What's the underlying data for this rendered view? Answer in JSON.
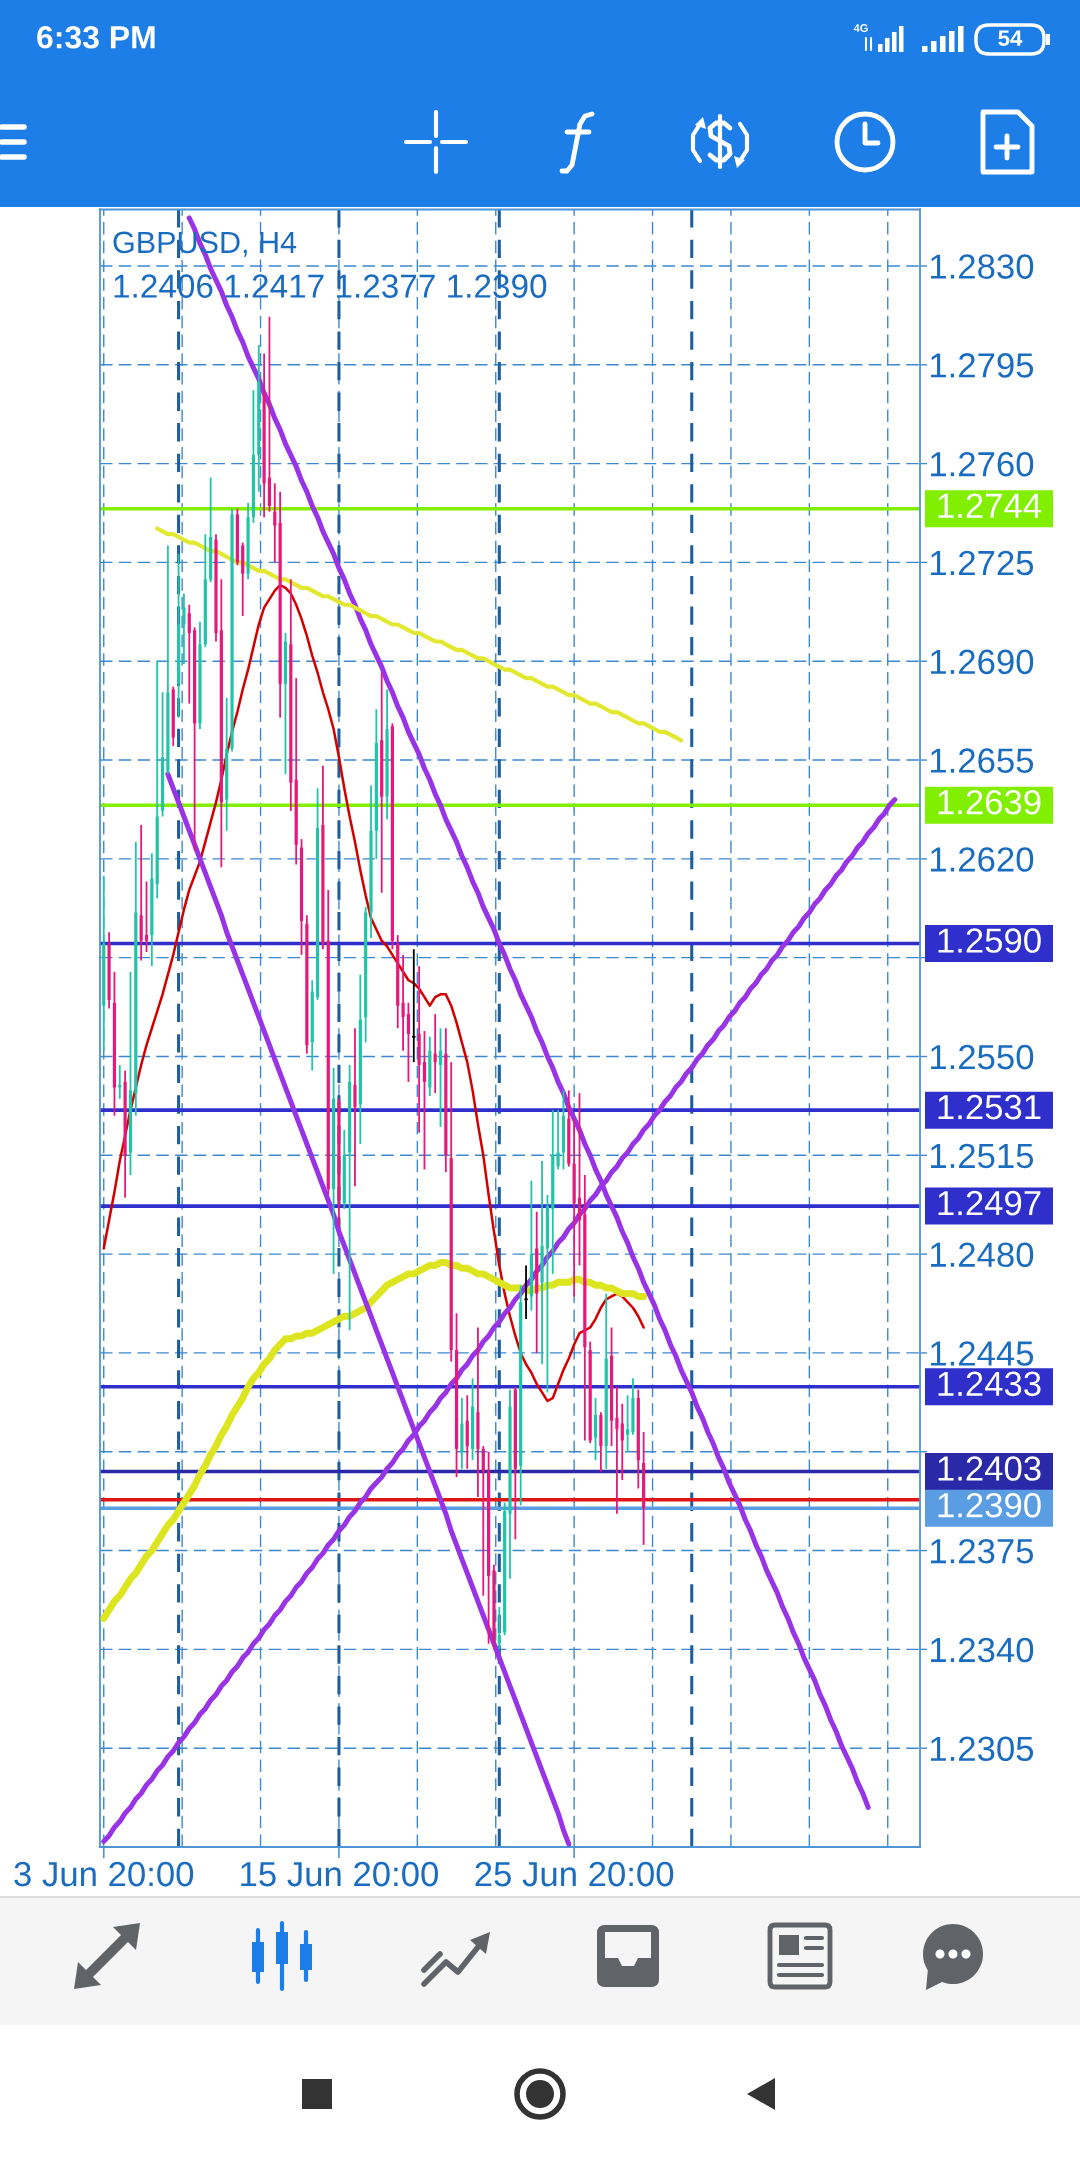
{
  "chart_data": {
    "type": "candlestick",
    "title": "GBPUSD, H4",
    "subtitle": "1.2406 1.2417 1.2377 1.2390",
    "annotations": [
      "6:33 PM",
      "4G",
      "54"
    ],
    "categories": [
      "3 Jun 20:00",
      null,
      null,
      null,
      null,
      null,
      null,
      null,
      null,
      null,
      null,
      null,
      null,
      null,
      null,
      null,
      null,
      null,
      null,
      null,
      null,
      null,
      null,
      null,
      null,
      null,
      null,
      null,
      null,
      null,
      null,
      null,
      null,
      null,
      null,
      null,
      null,
      null,
      null,
      null,
      null,
      null,
      null,
      null,
      "15 Jun 20:00",
      null,
      null,
      null,
      null,
      null,
      null,
      null,
      null,
      null,
      null,
      null,
      null,
      null,
      null,
      null,
      null,
      null,
      null,
      null,
      null,
      null,
      null,
      null,
      null,
      null,
      null,
      null,
      null,
      null,
      null,
      null,
      null,
      null,
      null,
      null,
      null,
      null,
      null,
      null,
      null,
      null,
      null,
      null,
      "25 Jun 20:00",
      null,
      null,
      null,
      null,
      null,
      null,
      null,
      null,
      null,
      null,
      null,
      null,
      null,
      null,
      null,
      null,
      null,
      null,
      null,
      null,
      null,
      null,
      null,
      null,
      null,
      null,
      null,
      null,
      null,
      null,
      null,
      null,
      null,
      null,
      null,
      null,
      null,
      null,
      null,
      null,
      null,
      null,
      null,
      null,
      null,
      null,
      null,
      null,
      null,
      null,
      null,
      null,
      null,
      null,
      null,
      null,
      null,
      null,
      null,
      null,
      null,
      null,
      null,
      null
    ],
    "series": [
      {
        "ohlc": [
          [
            1.2568,
            1.2614,
            1.2552,
            1.259
          ],
          [
            1.259,
            1.2594,
            1.2567,
            1.257
          ],
          [
            1.2569,
            1.258,
            1.2529,
            1.2539
          ],
          [
            1.2539,
            1.2547,
            1.2535,
            1.254
          ],
          [
            1.2541,
            1.2545,
            1.25,
            1.2515
          ],
          [
            1.2516,
            1.258,
            1.2508,
            1.2538
          ],
          [
            1.2537,
            1.2626,
            1.2529,
            1.2601
          ],
          [
            1.26,
            1.2632,
            1.2584,
            1.2591
          ],
          [
            1.2593,
            1.2612,
            1.2587,
            1.2591
          ],
          [
            1.2593,
            1.2622,
            1.2582,
            1.2613
          ],
          [
            1.2611,
            1.269,
            1.2606,
            1.2635
          ],
          [
            1.2637,
            1.2679,
            1.2635,
            1.2656
          ],
          [
            1.2651,
            1.2731,
            1.265,
            1.2679
          ],
          [
            1.268,
            1.2681,
            1.266,
            1.2663
          ],
          [
            1.2682,
            1.2728,
            1.267,
            1.2703
          ],
          [
            1.2703,
            1.2714,
            1.2689,
            1.2709
          ],
          [
            1.2707,
            1.271,
            1.2675,
            1.27
          ],
          [
            1.2701,
            1.2702,
            1.2623,
            1.2668
          ],
          [
            1.2668,
            1.2704,
            1.2666,
            1.2696
          ],
          [
            1.2696,
            1.2735,
            1.2695,
            1.2719
          ],
          [
            1.2719,
            1.2755,
            1.2718,
            1.2734
          ],
          [
            1.2733,
            1.2735,
            1.2697,
            1.27
          ],
          [
            1.2701,
            1.2719,
            1.2617,
            1.264
          ],
          [
            1.2641,
            1.2677,
            1.263,
            1.2659
          ],
          [
            1.2659,
            1.2744,
            1.2658,
            1.2742
          ],
          [
            1.2742,
            1.2744,
            1.2724,
            1.2725
          ],
          [
            1.2731,
            1.2732,
            1.2706,
            1.2721
          ],
          [
            1.2721,
            1.2746,
            1.2719,
            1.2741
          ],
          [
            1.2741,
            1.2786,
            1.2739,
            1.2763
          ],
          [
            1.2763,
            1.2802,
            1.275,
            1.2789
          ],
          [
            1.2785,
            1.2799,
            1.2741,
            1.2753
          ],
          [
            1.2755,
            1.2812,
            1.2743,
            1.2745
          ],
          [
            1.2743,
            1.2753,
            1.2725,
            1.2738
          ],
          [
            1.2739,
            1.275,
            1.267,
            1.2682
          ],
          [
            1.2682,
            1.27,
            1.265,
            1.2697
          ],
          [
            1.2696,
            1.2719,
            1.2637,
            1.2647
          ],
          [
            1.2648,
            1.2684,
            1.2618,
            1.2625
          ],
          [
            1.2624,
            1.2627,
            1.2586,
            1.2598
          ],
          [
            1.2597,
            1.26,
            1.2551,
            1.2554
          ],
          [
            1.2555,
            1.2577,
            1.2545,
            1.2573
          ],
          [
            1.2571,
            1.2645,
            1.257,
            1.2631
          ],
          [
            1.2632,
            1.2653,
            1.2588,
            1.259
          ],
          [
            1.2591,
            1.2609,
            1.2501,
            1.2503
          ],
          [
            1.2503,
            1.2546,
            1.2473,
            1.2535
          ],
          [
            1.2534,
            1.2535,
            1.249,
            1.2499
          ],
          [
            1.2498,
            1.2524,
            1.2496,
            1.2515
          ],
          [
            1.2516,
            1.2547,
            1.2453,
            1.2541
          ],
          [
            1.254,
            1.256,
            1.2504,
            1.2532
          ],
          [
            1.2533,
            1.2579,
            1.2519,
            1.2563
          ],
          [
            1.2564,
            1.2603,
            1.2555,
            1.2601
          ],
          [
            1.2601,
            1.2646,
            1.2592,
            1.263
          ],
          [
            1.263,
            1.2673,
            1.262,
            1.2661
          ],
          [
            1.2662,
            1.2686,
            1.2608,
            1.2642
          ],
          [
            1.2642,
            1.268,
            1.2634,
            1.2666
          ],
          [
            1.2667,
            1.2668,
            1.2588,
            1.2591
          ],
          [
            1.259,
            1.2593,
            1.256,
            1.2568
          ],
          [
            1.2569,
            1.2586,
            1.2552,
            1.2564
          ],
          [
            1.2565,
            1.2569,
            1.2541,
            1.2558
          ],
          [
            1.2557,
            1.2588,
            1.2548,
            1.2557
          ],
          [
            1.2558,
            1.2582,
            1.2523,
            1.2547
          ],
          [
            1.2548,
            1.2559,
            1.251,
            1.2541
          ],
          [
            1.2539,
            1.2557,
            1.2536,
            1.2552
          ],
          [
            1.2551,
            1.2565,
            1.2537,
            1.2548
          ],
          [
            1.2547,
            1.256,
            1.2525,
            1.2552
          ],
          [
            1.2551,
            1.256,
            1.2509,
            1.2515
          ],
          [
            1.2514,
            1.2548,
            1.2442,
            1.2446
          ],
          [
            1.2446,
            1.2459,
            1.2401,
            1.2411
          ],
          [
            1.241,
            1.2429,
            1.2404,
            1.242
          ],
          [
            1.2421,
            1.243,
            1.2404,
            1.2412
          ],
          [
            1.2411,
            1.2436,
            1.2407,
            1.2426
          ],
          [
            1.2424,
            1.2454,
            1.2394,
            1.2411
          ],
          [
            1.2411,
            1.2412,
            1.2359,
            1.2403
          ],
          [
            1.2403,
            1.241,
            1.2342,
            1.2366
          ],
          [
            1.2368,
            1.237,
            1.234,
            1.2343
          ],
          [
            1.2342,
            1.2355,
            1.234,
            1.2345
          ],
          [
            1.2346,
            1.2392,
            1.2345,
            1.2389
          ],
          [
            1.2388,
            1.2432,
            1.2365,
            1.2426
          ],
          [
            1.2432,
            1.2433,
            1.2379,
            1.2404
          ],
          [
            1.2405,
            1.2469,
            1.2391,
            1.2463
          ],
          [
            1.2464,
            1.2476,
            1.2457,
            1.2464
          ],
          [
            1.2465,
            1.2506,
            1.246,
            1.248
          ],
          [
            1.2482,
            1.2495,
            1.2445,
            1.2466
          ],
          [
            1.247,
            1.2513,
            1.2441,
            1.2483
          ],
          [
            1.2482,
            1.2501,
            1.2431,
            1.2497
          ],
          [
            1.2496,
            1.2531,
            1.2473,
            1.2515
          ],
          [
            1.2511,
            1.2531,
            1.251,
            1.2516
          ],
          [
            1.2516,
            1.2538,
            1.251,
            1.2529
          ],
          [
            1.2528,
            1.2538,
            1.2511,
            1.2512
          ],
          [
            1.2512,
            1.2528,
            1.2465,
            1.2498
          ],
          [
            1.25,
            1.2537,
            1.2476,
            1.2492
          ],
          [
            1.2494,
            1.2508,
            1.2414,
            1.2447
          ],
          [
            1.2446,
            1.2449,
            1.2413,
            1.2414
          ],
          [
            1.2415,
            1.2429,
            1.2407,
            1.2423
          ],
          [
            1.2423,
            1.2424,
            1.2403,
            1.2412
          ],
          [
            1.2412,
            1.2466,
            1.2404,
            1.2443
          ],
          [
            1.2444,
            1.2454,
            1.2412,
            1.2421
          ],
          [
            1.2422,
            1.2433,
            1.2388,
            1.2418
          ],
          [
            1.242,
            1.2427,
            1.24,
            1.2414
          ],
          [
            1.2416,
            1.243,
            1.241,
            1.2418
          ],
          [
            1.2417,
            1.2436,
            1.2416,
            1.2429
          ],
          [
            1.2429,
            1.2432,
            1.2397,
            1.2407
          ],
          [
            1.2406,
            1.2417,
            1.2377,
            1.239
          ],
          null,
          null,
          null,
          null,
          null,
          null,
          null,
          null,
          null,
          null,
          null,
          null,
          null,
          null,
          null,
          null,
          null,
          null,
          null,
          null,
          null,
          null,
          null,
          null,
          null,
          null,
          null,
          null,
          null,
          null,
          null,
          null,
          null,
          null,
          null,
          null,
          null,
          null,
          null,
          null,
          null,
          null,
          null,
          null,
          null,
          null,
          null,
          null,
          null,
          null,
          null
        ],
        "colors": [
          "#22c3a8",
          "#e3197b",
          "#e3197b",
          "#22c3a8",
          "#e3197b",
          "#22c3a8",
          "#22c3a8",
          "#e3197b",
          "#e3197b",
          "#22c3a8",
          "#22c3a8",
          "#22c3a8",
          "#22c3a8",
          "#e3197b",
          "#22c3a8",
          "#22c3a8",
          "#e3197b",
          "#e3197b",
          "#22c3a8",
          "#22c3a8",
          "#22c3a8",
          "#e3197b",
          "#e3197b",
          "#22c3a8",
          "#22c3a8",
          "#e3197b",
          "#e3197b",
          "#22c3a8",
          "#22c3a8",
          "#22c3a8",
          "#e3197b",
          "#e3197b",
          "#e3197b",
          "#e3197b",
          "#22c3a8",
          "#e3197b",
          "#e3197b",
          "#e3197b",
          "#e3197b",
          "#22c3a8",
          "#22c3a8",
          "#e3197b",
          "#e3197b",
          "#22c3a8",
          "#e3197b",
          "#22c3a8",
          "#22c3a8",
          "#e3197b",
          "#22c3a8",
          "#22c3a8",
          "#22c3a8",
          "#22c3a8",
          "#e3197b",
          "#22c3a8",
          "#e3197b",
          "#e3197b",
          "#e3197b",
          "#e3197b",
          "#000000",
          "#e3197b",
          "#e3197b",
          "#22c3a8",
          "#e3197b",
          "#22c3a8",
          "#e3197b",
          "#e3197b",
          "#e3197b",
          "#22c3a8",
          "#e3197b",
          "#22c3a8",
          "#e3197b",
          "#e3197b",
          "#e3197b",
          "#e3197b",
          "#22c3a8",
          "#22c3a8",
          "#22c3a8",
          "#e3197b",
          "#22c3a8",
          "#000000",
          "#22c3a8",
          "#e3197b",
          "#22c3a8",
          "#22c3a8",
          "#22c3a8",
          "#22c3a8",
          "#22c3a8",
          "#e3197b",
          "#e3197b",
          "#e3197b",
          "#e3197b",
          "#e3197b",
          "#22c3a8",
          "#e3197b",
          "#22c3a8",
          "#e3197b",
          "#e3197b",
          "#e3197b",
          "#22c3a8",
          "#22c3a8",
          "#e3197b",
          "#e3197b",
          null,
          null,
          null,
          null,
          null,
          null,
          null,
          null,
          null,
          null,
          null,
          null,
          null,
          null,
          null,
          null,
          null,
          null,
          null,
          null,
          null,
          null,
          null,
          null,
          null,
          null,
          null,
          null,
          null,
          null,
          null,
          null,
          null,
          null,
          null,
          null,
          null,
          null,
          null,
          null,
          null,
          null,
          null,
          null,
          null,
          null,
          null,
          null,
          null,
          null,
          null
        ]
      },
      {
        "type": "line",
        "color": "#d40000",
        "values": [
          1.2482,
          1.2492,
          1.2502,
          1.2513,
          1.2522,
          1.2531,
          1.2539,
          1.2547,
          1.2554,
          1.256,
          1.2566,
          1.2572,
          1.2579,
          1.2586,
          1.2594,
          1.2602,
          1.2609,
          1.2614,
          1.2619,
          1.2626,
          1.2633,
          1.264,
          1.2648,
          1.2657,
          1.2665,
          1.2672,
          1.268,
          1.2687,
          1.2695,
          1.2703,
          1.2709,
          1.2712,
          1.2715,
          1.2717,
          1.2716,
          1.2714,
          1.271,
          1.2705,
          1.2699,
          1.2692,
          1.2686,
          1.2679,
          1.2673,
          1.2666,
          1.2656,
          1.2645,
          1.2635,
          1.2626,
          1.2616,
          1.2607,
          1.2599,
          1.2595,
          1.2591,
          1.2589,
          1.2586,
          1.2583,
          1.258,
          1.2577,
          1.2576,
          1.2574,
          1.2571,
          1.2568,
          1.2571,
          1.2572,
          1.2572,
          1.2568,
          1.2562,
          1.2555,
          1.2548,
          1.2538,
          1.2526,
          1.2515,
          1.2501,
          1.2488,
          1.2476,
          1.2466,
          1.2458,
          1.2451,
          1.2445,
          1.2441,
          1.2438,
          1.2434,
          1.2431,
          1.2428,
          1.2429,
          1.2434,
          1.2439,
          1.2443,
          1.2448,
          1.2452,
          1.2453,
          1.2454,
          1.2457,
          1.2461,
          1.2464,
          1.2465,
          1.2466,
          1.2465,
          1.2463,
          1.2461,
          1.2458,
          1.2454,
          null,
          null,
          null,
          null,
          null,
          null,
          null,
          null,
          null,
          null,
          null,
          null,
          null,
          null,
          null,
          null,
          null,
          null,
          null,
          null,
          null,
          null,
          null,
          null,
          null,
          null,
          null,
          null,
          null,
          null,
          null,
          null,
          null,
          null,
          null,
          null,
          null,
          null,
          null,
          null,
          null,
          null,
          null,
          null,
          null,
          null,
          null,
          null,
          null,
          null,
          null
        ]
      },
      {
        "type": "line",
        "color": "#dde520",
        "values": [
          1.2351,
          1.2354,
          1.2357,
          1.2359,
          1.2362,
          1.2365,
          1.2367,
          1.237,
          1.2373,
          1.2375,
          1.2378,
          1.2381,
          1.2384,
          1.2386,
          1.2389,
          1.2392,
          1.2395,
          1.2398,
          1.2402,
          1.2405,
          1.2409,
          1.2412,
          1.2416,
          1.2419,
          1.2423,
          1.2426,
          1.2429,
          1.2433,
          1.2436,
          1.2438,
          1.2441,
          1.2443,
          1.2446,
          1.2448,
          1.245,
          1.245,
          1.2451,
          1.2451,
          1.2452,
          1.2452,
          1.2453,
          1.2454,
          1.2455,
          1.2456,
          1.2457,
          1.2458,
          1.2458,
          1.2459,
          1.246,
          1.2461,
          1.2463,
          1.2465,
          1.2467,
          1.2469,
          1.247,
          1.2471,
          1.2472,
          1.2473,
          1.2473,
          1.2474,
          1.2475,
          1.2476,
          1.2476,
          1.2477,
          1.2477,
          1.2476,
          1.2476,
          1.2475,
          1.2475,
          1.2474,
          1.2473,
          1.2473,
          1.2472,
          1.2471,
          1.247,
          1.2469,
          1.2468,
          1.2468,
          1.2468,
          1.2467,
          1.2467,
          1.2468,
          1.2468,
          1.2469,
          1.2469,
          1.247,
          1.247,
          1.247,
          1.2471,
          1.2471,
          1.247,
          1.247,
          1.2469,
          1.2469,
          1.2468,
          1.2468,
          1.2467,
          1.2466,
          1.2466,
          1.2466,
          1.2465,
          1.2465,
          null,
          null,
          null,
          null,
          null,
          null,
          null,
          null,
          null,
          null,
          null,
          null,
          null,
          null,
          null,
          null,
          null,
          null,
          null,
          null,
          null,
          null,
          null,
          null,
          null,
          null,
          null,
          null,
          null,
          null,
          null,
          null,
          null,
          null,
          null,
          null,
          null,
          null,
          null,
          null,
          null,
          null,
          null,
          null,
          null,
          null,
          null,
          null,
          null,
          null,
          null
        ]
      },
      {
        "type": "line",
        "color": "#9933e6",
        "values": [
          null,
          null,
          null,
          null,
          null,
          null,
          null,
          null,
          null,
          null,
          null,
          null,
          null,
          null,
          null,
          null,
          1.2847,
          1.2843,
          1.2838,
          1.2834,
          1.2829,
          1.2825,
          1.2821,
          1.2816,
          1.2812,
          1.2807,
          1.2803,
          1.2798,
          1.2794,
          1.279,
          1.2785,
          1.2781,
          1.2776,
          1.2772,
          1.2767,
          1.2763,
          1.2759,
          1.2754,
          1.275,
          1.2745,
          1.2741,
          1.2736,
          1.2732,
          1.2728,
          1.2723,
          1.2719,
          1.2714,
          1.271,
          1.2705,
          1.2701,
          1.2696,
          1.2692,
          1.2688,
          1.2683,
          1.2679,
          1.2674,
          1.267,
          1.2665,
          1.2661,
          1.2657,
          1.2652,
          1.2648,
          1.2643,
          1.2639,
          1.2634,
          1.263,
          1.2626,
          1.2621,
          1.2617,
          1.2612,
          1.2608,
          1.2603,
          1.2599,
          1.2595,
          1.259,
          1.2586,
          1.2581,
          1.2577,
          1.2572,
          1.2568,
          1.2564,
          1.2559,
          1.2555,
          1.255,
          1.2546,
          1.2541,
          1.2537,
          1.2532,
          1.2528,
          1.2524,
          1.2519,
          1.2515,
          1.251,
          1.2506,
          1.2501,
          1.2497,
          1.2493,
          1.2488,
          1.2484,
          1.2479,
          1.2475,
          1.247,
          1.2466,
          1.2462,
          1.2457,
          1.2453,
          1.2448,
          1.2444,
          1.2439,
          1.2435,
          1.2431,
          1.2426,
          1.2422,
          1.2417,
          1.2413,
          1.2408,
          1.2404,
          1.2399,
          1.2395,
          1.2391,
          1.2386,
          1.2382,
          1.2377,
          1.2373,
          1.2368,
          1.2364,
          1.236,
          1.2355,
          1.2351,
          1.2346,
          1.2342,
          1.2337,
          1.2333,
          1.2329,
          1.2324,
          1.232,
          1.2315,
          1.2311,
          1.2306,
          1.2302,
          1.2298,
          1.2293,
          1.2289,
          1.2284,
          null,
          null,
          null,
          null,
          null,
          null,
          null,
          null,
          null
        ]
      },
      {
        "type": "line",
        "color": "#9933e6",
        "values": [
          null,
          null,
          null,
          null,
          null,
          null,
          null,
          null,
          null,
          null,
          null,
          null,
          1.265,
          1.2645,
          1.264,
          1.2635,
          1.263,
          1.2625,
          1.262,
          1.2615,
          1.261,
          1.2605,
          1.26,
          1.2594,
          1.2589,
          1.2584,
          1.2579,
          1.2574,
          1.2569,
          1.2564,
          1.2559,
          1.2554,
          1.2549,
          1.2544,
          1.2539,
          1.2534,
          1.2529,
          1.2524,
          1.2519,
          1.2514,
          1.2509,
          1.2504,
          1.2499,
          1.2494,
          1.2488,
          1.2483,
          1.2478,
          1.2473,
          1.2468,
          1.2463,
          1.2458,
          1.2453,
          1.2448,
          1.2443,
          1.2438,
          1.2433,
          1.2428,
          1.2423,
          1.2418,
          1.2413,
          1.2408,
          1.2403,
          1.2398,
          1.2393,
          1.2388,
          1.2382,
          1.2377,
          1.2372,
          1.2367,
          1.2362,
          1.2357,
          1.2352,
          1.2347,
          1.2342,
          1.2337,
          1.2332,
          1.2327,
          1.2322,
          1.2317,
          1.2312,
          1.2307,
          1.2302,
          1.2297,
          1.2292,
          1.2287,
          1.2282,
          1.2276,
          1.2271,
          null,
          null,
          null,
          null,
          null,
          null,
          null,
          null,
          null,
          null,
          null,
          null,
          null,
          null,
          null,
          null,
          null,
          null,
          null,
          null,
          null,
          null,
          null,
          null,
          null,
          null,
          null,
          null,
          null,
          null,
          null,
          null,
          null,
          null,
          null,
          null,
          null,
          null,
          null,
          null,
          null,
          null,
          null,
          null,
          null,
          null,
          null,
          null,
          null,
          null,
          null,
          null,
          null,
          null,
          null,
          null,
          null,
          null,
          null,
          null,
          null,
          null,
          null,
          null,
          null
        ]
      },
      {
        "type": "line",
        "color": "#9933e6",
        "values": [
          1.2272,
          1.2274,
          1.2277,
          1.2279,
          1.2282,
          1.2284,
          1.2287,
          1.2289,
          1.2292,
          1.2294,
          1.2297,
          1.2299,
          1.2302,
          1.2304,
          1.2307,
          1.2309,
          1.2312,
          1.2314,
          1.2317,
          1.2319,
          1.2322,
          1.2324,
          1.2327,
          1.2329,
          1.2332,
          1.2334,
          1.2337,
          1.2339,
          1.2342,
          1.2344,
          1.2347,
          1.2349,
          1.2352,
          1.2354,
          1.2357,
          1.2359,
          1.2362,
          1.2364,
          1.2367,
          1.2369,
          1.2372,
          1.2374,
          1.2377,
          1.2379,
          1.2382,
          1.2384,
          1.2387,
          1.2389,
          1.2392,
          1.2394,
          1.2397,
          1.2399,
          1.2401,
          1.2404,
          1.2406,
          1.2409,
          1.2411,
          1.2414,
          1.2416,
          1.2419,
          1.2421,
          1.2424,
          1.2426,
          1.2429,
          1.2431,
          1.2434,
          1.2436,
          1.2439,
          1.2441,
          1.2444,
          1.2446,
          1.2449,
          1.2451,
          1.2454,
          1.2456,
          1.2459,
          1.2461,
          1.2464,
          1.2466,
          1.2469,
          1.2471,
          1.2474,
          1.2476,
          1.2479,
          1.2481,
          1.2484,
          1.2486,
          1.2489,
          1.2491,
          1.2494,
          1.2496,
          1.2499,
          1.2501,
          1.2504,
          1.2506,
          1.2509,
          1.2511,
          1.2514,
          1.2516,
          1.2519,
          1.2521,
          1.2524,
          1.2526,
          1.2529,
          1.2531,
          1.2534,
          1.2536,
          1.2539,
          1.2541,
          1.2544,
          1.2546,
          1.2549,
          1.2551,
          1.2554,
          1.2556,
          1.2559,
          1.2561,
          1.2564,
          1.2566,
          1.2569,
          1.2571,
          1.2574,
          1.2576,
          1.2579,
          1.2581,
          1.2584,
          1.2586,
          1.2589,
          1.2591,
          1.2594,
          1.2596,
          1.2599,
          1.2601,
          1.2604,
          1.2606,
          1.2609,
          1.2611,
          1.2614,
          1.2616,
          1.2619,
          1.2621,
          1.2624,
          1.2626,
          1.2629,
          1.2631,
          1.2634,
          1.2636,
          1.2639,
          1.2641,
          null,
          null,
          null,
          null
        ]
      },
      {
        "type": "line",
        "color": "#e2e830",
        "values": [
          null,
          null,
          null,
          null,
          null,
          null,
          null,
          null,
          null,
          null,
          1.2737,
          1.2736,
          1.2735,
          1.2735,
          1.2734,
          1.2733,
          1.2732,
          1.2732,
          1.2731,
          1.273,
          1.2729,
          1.2729,
          1.2728,
          1.2727,
          1.2726,
          1.2725,
          1.2725,
          1.2724,
          1.2723,
          1.2722,
          1.2722,
          1.2721,
          1.272,
          1.2719,
          1.2719,
          1.2718,
          1.2717,
          1.2716,
          1.2716,
          1.2715,
          1.2714,
          1.2713,
          1.2713,
          1.2712,
          1.2711,
          1.271,
          1.271,
          1.2709,
          1.2708,
          1.2707,
          1.2706,
          1.2706,
          1.2705,
          1.2704,
          1.2703,
          1.2703,
          1.2702,
          1.2701,
          1.27,
          1.27,
          1.2699,
          1.2698,
          1.2697,
          1.2697,
          1.2696,
          1.2695,
          1.2694,
          1.2694,
          1.2693,
          1.2692,
          1.2691,
          1.2691,
          1.269,
          1.2689,
          1.2688,
          1.2687,
          1.2687,
          1.2686,
          1.2685,
          1.2684,
          1.2684,
          1.2683,
          1.2682,
          1.2681,
          1.2681,
          1.268,
          1.2679,
          1.2678,
          1.2678,
          1.2677,
          1.2676,
          1.2675,
          1.2675,
          1.2674,
          1.2673,
          1.2672,
          1.2672,
          1.2671,
          1.267,
          1.2669,
          1.2668,
          1.2668,
          1.2667,
          1.2666,
          1.2665,
          1.2665,
          1.2664,
          1.2663,
          1.2662,
          null,
          null,
          null,
          null,
          null,
          null,
          null,
          null,
          null,
          null,
          null,
          null,
          null,
          null,
          null,
          null,
          null,
          null,
          null,
          null,
          null,
          null,
          null,
          null,
          null,
          null,
          null,
          null,
          null,
          null,
          null,
          null,
          null,
          null,
          null,
          null,
          null,
          null,
          null,
          null,
          null,
          null,
          null,
          null
        ]
      }
    ],
    "ylim": [
      1.227,
      1.285
    ],
    "yticks": [
      1.2305,
      {
        "value": 1.234,
        "label": "1.2340"
      },
      1.2375,
      {
        "value": 1.241,
        "label": null
      },
      1.2445,
      {
        "value": 1.248,
        "label": "1.2480"
      },
      1.2515,
      {
        "value": 1.255,
        "label": "1.2550"
      },
      {
        "value": 1.2585,
        "label": null
      },
      {
        "value": 1.262,
        "label": "1.2620"
      },
      1.2655,
      {
        "value": 1.269,
        "label": "1.2690"
      },
      1.2725,
      {
        "value": 1.276,
        "label": "1.2760"
      },
      1.2795,
      {
        "value": 1.283,
        "label": "1.2830"
      }
    ],
    "grid": true,
    "ref_lines": [
      {
        "axis": "y",
        "value": 1.2744,
        "label": "1.2744",
        "color": "#82ee00"
      },
      {
        "axis": "y",
        "value": 1.2639,
        "label": "1.2639",
        "color": "#82ee00"
      },
      {
        "axis": "y",
        "value": 1.259,
        "label": "1.2590",
        "color": "#2f2fcc"
      },
      {
        "axis": "y",
        "value": 1.2531,
        "label": "1.2531",
        "color": "#2f2fcc"
      },
      {
        "axis": "y",
        "value": 1.2497,
        "label": "1.2497",
        "color": "#2f2fcc"
      },
      {
        "axis": "y",
        "value": 1.2433,
        "label": "1.2433",
        "color": "#2f2fcc"
      },
      {
        "axis": "y",
        "value": 1.2403,
        "label": "1.2403",
        "color": "#2a2aa8"
      },
      {
        "axis": "y",
        "value": 1.2393,
        "color": "#e01515"
      },
      {
        "axis": "y",
        "value": 1.239,
        "label": "1.2390",
        "color": "#5b9de3"
      }
    ]
  }
}
